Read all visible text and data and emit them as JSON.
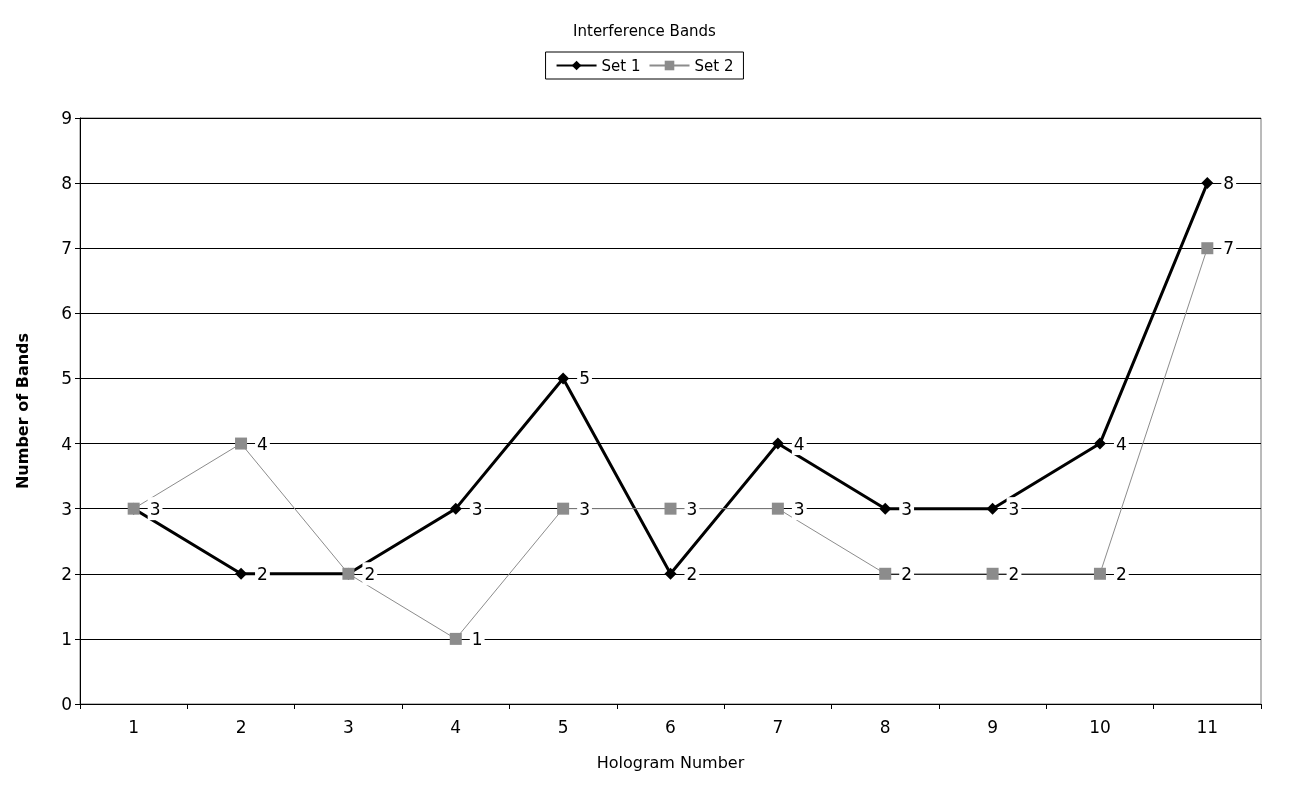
{
  "chart_data": {
    "type": "line",
    "title": "Interference Bands",
    "xlabel": "Hologram Number",
    "ylabel": "Number of Bands",
    "categories": [
      "1",
      "2",
      "3",
      "4",
      "5",
      "6",
      "7",
      "8",
      "9",
      "10",
      "11"
    ],
    "series": [
      {
        "name": "Set 1",
        "color": "#000000",
        "marker": "diamond",
        "values": [
          3,
          2,
          2,
          3,
          5,
          2,
          4,
          3,
          3,
          4,
          8
        ]
      },
      {
        "name": "Set 2",
        "color": "#8c8c8c",
        "marker": "square",
        "values": [
          3,
          4,
          2,
          1,
          3,
          3,
          3,
          2,
          2,
          2,
          7
        ],
        "value_labels": [
          null,
          "4",
          null,
          "1",
          "3",
          "3",
          "3",
          "2",
          "2",
          "2",
          "7"
        ]
      }
    ],
    "ylim": [
      0,
      9
    ],
    "yticks": [
      0,
      1,
      2,
      3,
      4,
      5,
      6,
      7,
      8,
      9
    ],
    "grid": "y",
    "legend": "top",
    "data_labels": true
  }
}
